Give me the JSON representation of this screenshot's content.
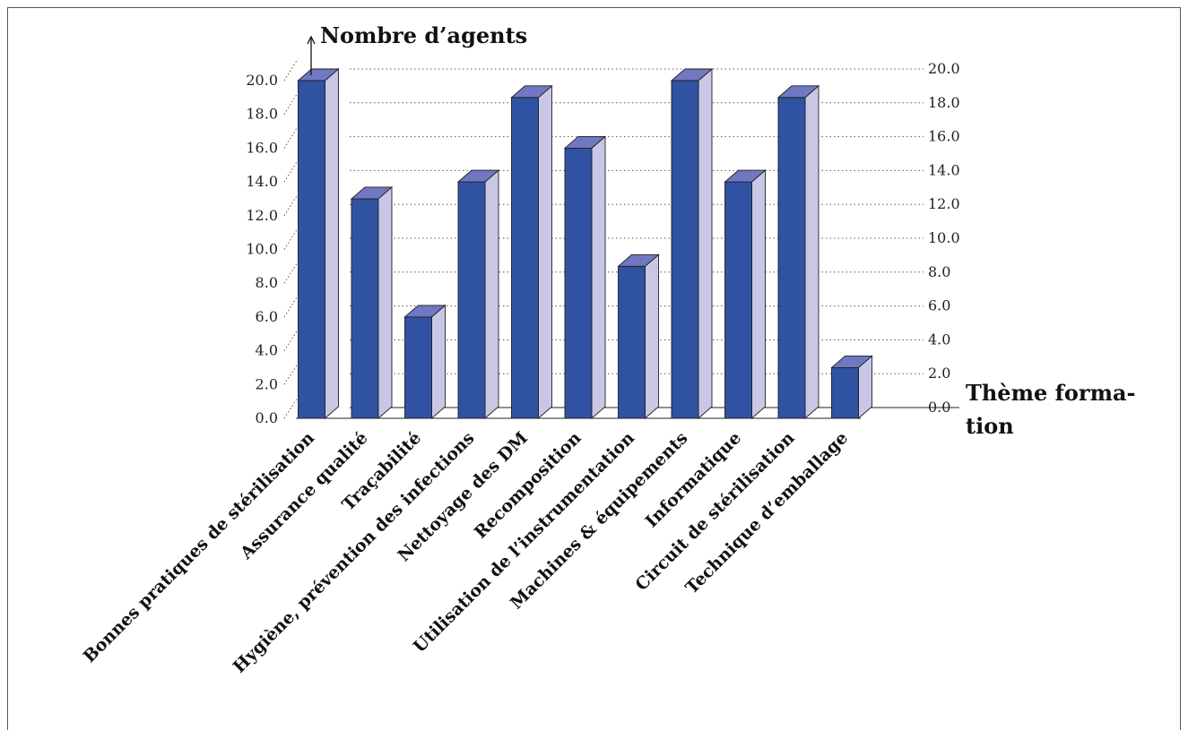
{
  "chart_data": {
    "type": "bar",
    "ylabel": "Nombre d’agents",
    "xlabel_lines": [
      "Thème forma-",
      "tion"
    ],
    "categories": [
      "Bonnes pratiques de stérilisation",
      "Assurance qualité",
      "Traçabilité",
      "Hygiène, prévention des infections",
      "Nettoyage des DM",
      "Recomposition",
      "Utilisation de l’instrumentation",
      "Machines & équipements",
      "Informatique",
      "Circuit de stérilisation",
      "Technique d’emballage"
    ],
    "values": [
      20,
      13,
      6,
      14,
      19,
      16,
      9,
      20,
      14,
      19,
      3
    ],
    "ylim": [
      0,
      20
    ],
    "yticks": [
      "0.0",
      "2.0",
      "4.0",
      "6.0",
      "8.0",
      "10.0",
      "12.0",
      "14.0",
      "16.0",
      "18.0",
      "20.0"
    ],
    "grid": true,
    "colors": {
      "bar_front": "#2f52a3",
      "bar_top": "#6f78c0",
      "bar_side": "#c8c8e6"
    }
  }
}
